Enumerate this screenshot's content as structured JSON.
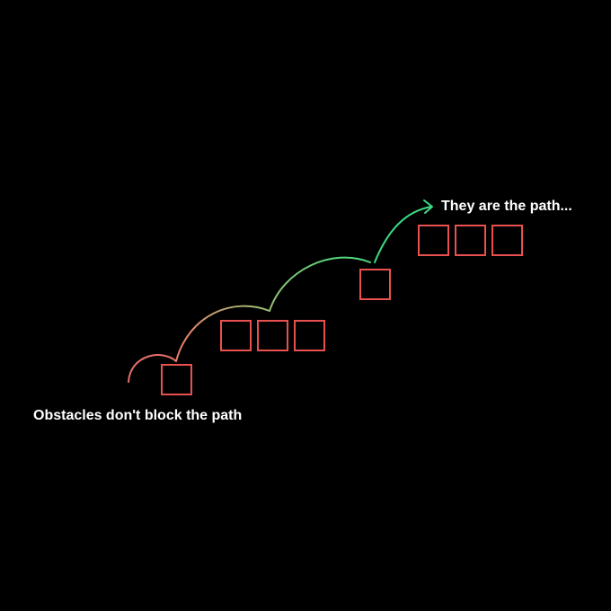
{
  "labels": {
    "start": "Obstacles don't block the path",
    "end": "They are the path..."
  },
  "colors": {
    "background": "#000000",
    "text": "#ffffff",
    "obstacle": "#e8514f",
    "path_start": "#e8706a",
    "path_end": "#3ddc84"
  },
  "obstacle_groups": [
    {
      "count": 1
    },
    {
      "count": 3
    },
    {
      "count": 1
    },
    {
      "count": 3
    }
  ]
}
